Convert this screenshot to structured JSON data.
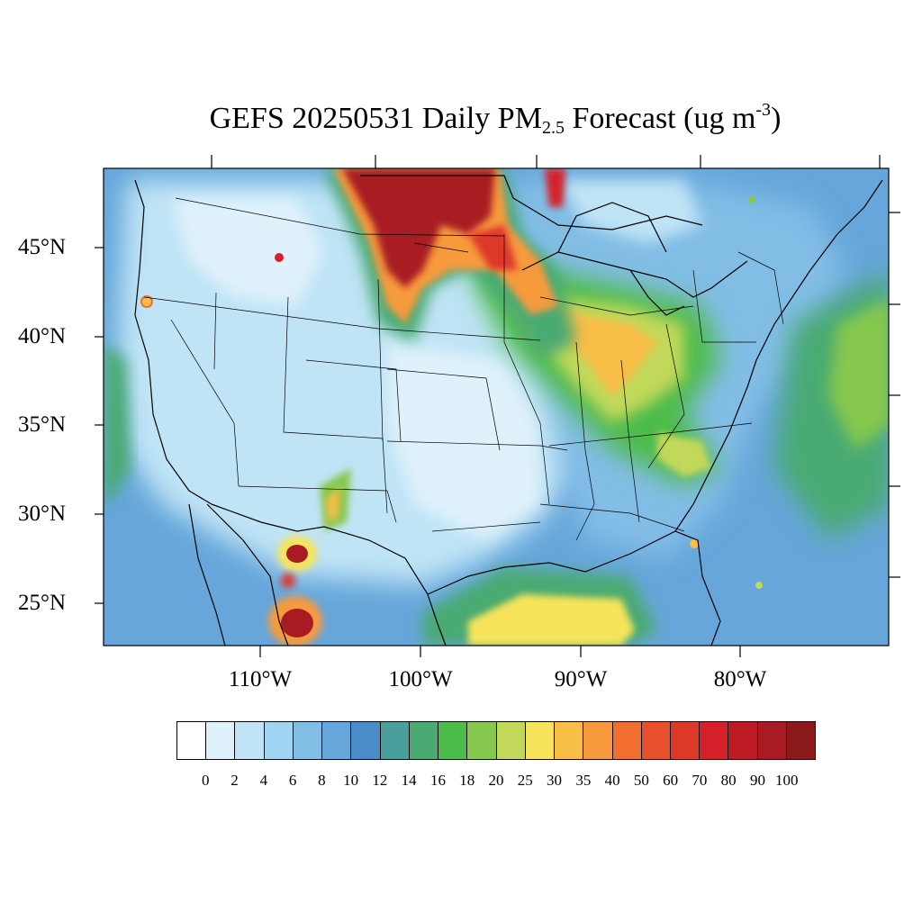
{
  "title": {
    "prefix": "GEFS 20250531 Daily PM",
    "subscript": "2.5",
    "middle": " Forecast (ug m",
    "superscript": "-3",
    "suffix": ")"
  },
  "axes": {
    "lat_labels": [
      "45°N",
      "40°N",
      "35°N",
      "30°N",
      "25°N"
    ],
    "lon_labels": [
      "110°W",
      "100°W",
      "90°W",
      "80°W"
    ]
  },
  "colorbar": {
    "levels": [
      "0",
      "2",
      "4",
      "6",
      "8",
      "10",
      "12",
      "14",
      "16",
      "18",
      "20",
      "25",
      "30",
      "35",
      "40",
      "50",
      "60",
      "70",
      "80",
      "90",
      "100"
    ],
    "colors": [
      "#ffffff",
      "#dff1fb",
      "#bfe4f6",
      "#9fd5f2",
      "#82bde6",
      "#66a6da",
      "#4a8cc8",
      "#4a9e9c",
      "#4aaa72",
      "#4dbb4a",
      "#86c84e",
      "#c2d85a",
      "#f7e45a",
      "#f8be46",
      "#f79a3e",
      "#f26e30",
      "#e8502d",
      "#de3829",
      "#d62029",
      "#bd1a24",
      "#a81b22",
      "#8c1a1a"
    ]
  },
  "layers": {
    "land_color": "#c0e3f4",
    "border_color": "#000000",
    "plumes": [
      {
        "name": "canadian-smoke-core",
        "level": "100"
      },
      {
        "name": "great-lakes-ohio-valley",
        "level": "30"
      },
      {
        "name": "gulf-of-mexico",
        "level": "25"
      },
      {
        "name": "mexico-fires",
        "level": "100"
      },
      {
        "name": "atlantic",
        "level": "16"
      }
    ]
  }
}
